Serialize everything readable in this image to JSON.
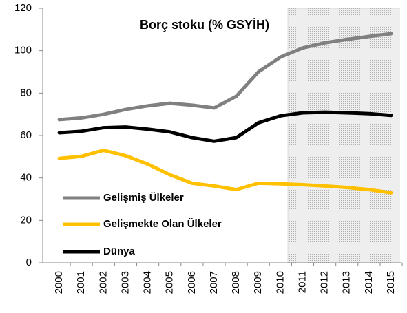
{
  "chart_data": {
    "type": "line",
    "title": "Borç stoku (% GSYİH)",
    "categories": [
      "2000",
      "2001",
      "2002",
      "2003",
      "2004",
      "2005",
      "2006",
      "2007",
      "2008",
      "2009",
      "2010",
      "2011",
      "2012",
      "2013",
      "2014",
      "2015"
    ],
    "series": [
      {
        "name": "Gelişmiş Ülkeler",
        "color": "#808080",
        "values": [
          67.5,
          68.3,
          70,
          72.3,
          74,
          75.2,
          74.3,
          73,
          78.5,
          90,
          97,
          101.3,
          103.7,
          105.3,
          106.7,
          108
        ]
      },
      {
        "name": "Gelişmekte Olan Ülkeler",
        "color": "#ffc000",
        "values": [
          49.2,
          50.2,
          53,
          50.5,
          46.5,
          41.5,
          37.5,
          36.2,
          34.5,
          37.5,
          37.2,
          36.8,
          36.2,
          35.5,
          34.5,
          33
        ]
      },
      {
        "name": "Dünya",
        "color": "#000000",
        "values": [
          61.3,
          62,
          63.7,
          64,
          63,
          61.7,
          59,
          57.3,
          59,
          66,
          69.3,
          70.7,
          71,
          70.7,
          70.3,
          69.5
        ]
      }
    ],
    "ylim": [
      0,
      120
    ],
    "yticks": [
      0,
      20,
      40,
      60,
      80,
      100,
      120
    ],
    "grid": false
  }
}
